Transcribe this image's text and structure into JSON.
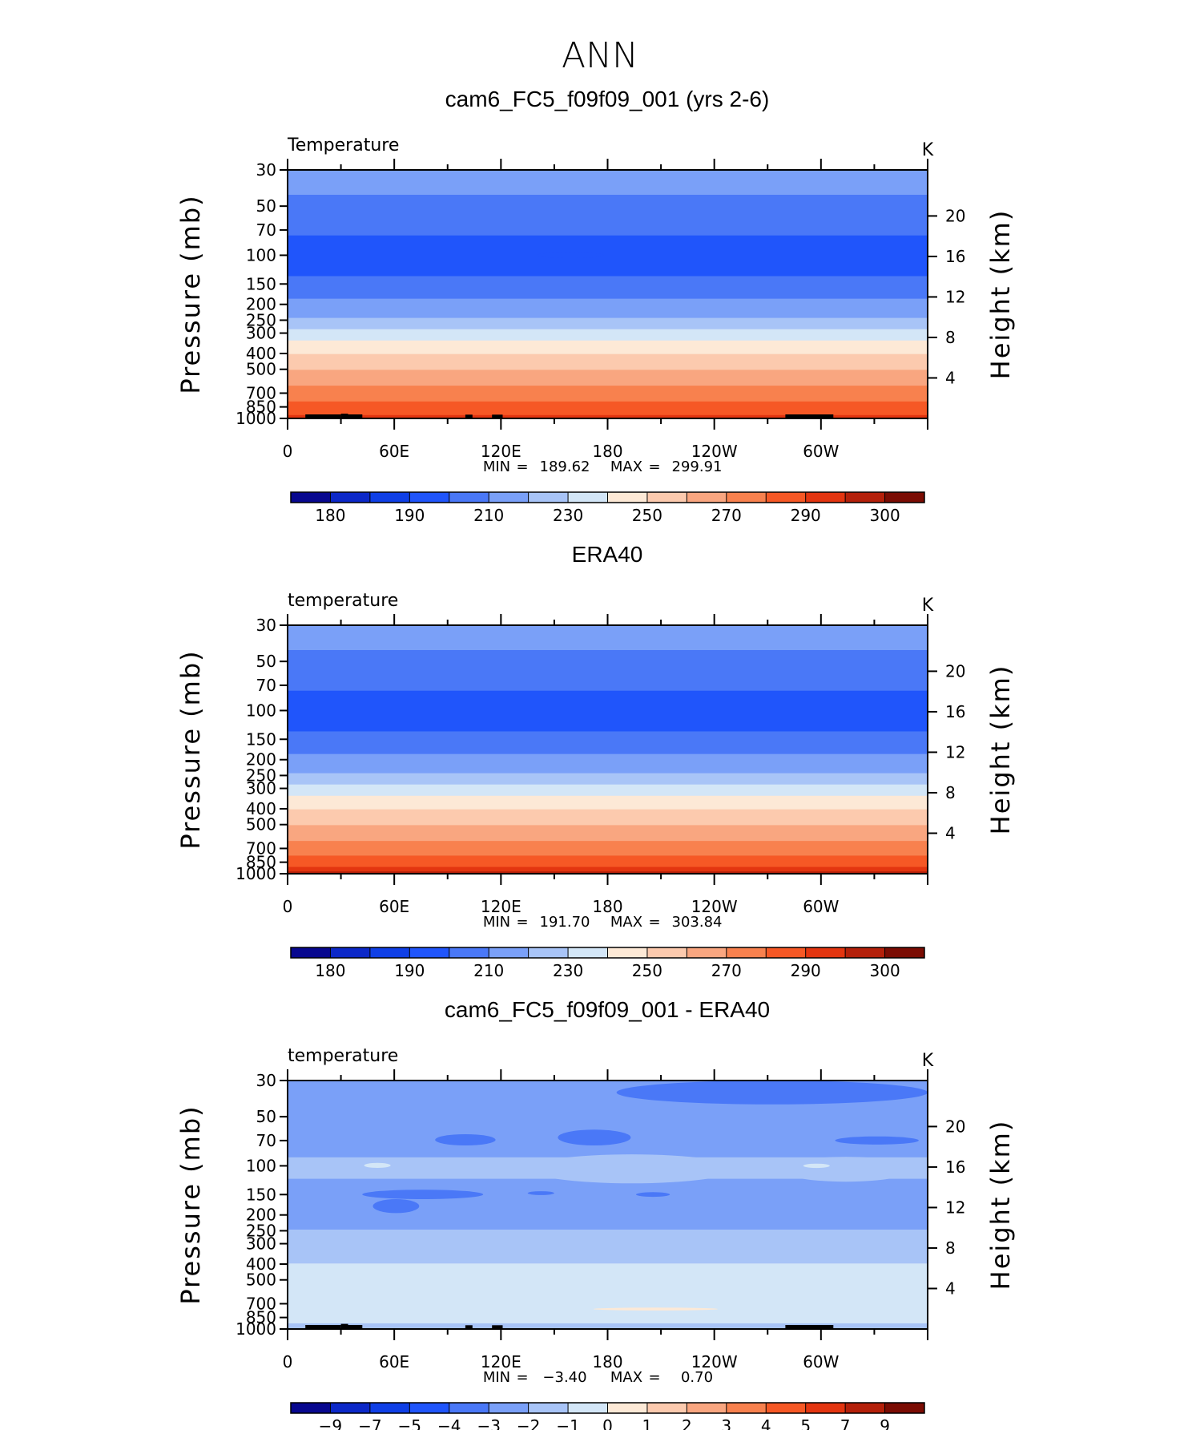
{
  "figure_title": "ANN",
  "chart_data": [
    {
      "type": "heatmap",
      "title": "cam6_FC5_f09f09_001 (yrs 2-6)",
      "var_label": "Temperature",
      "units": "K",
      "ylabel": "Pressure (mb)",
      "ylabel2": "Height (km)",
      "x_ticks": [
        "0",
        "60E",
        "120E",
        "180",
        "120W",
        "60W"
      ],
      "y_ticks": [
        "30",
        "50",
        "70",
        "100",
        "150",
        "200",
        "250",
        "300",
        "400",
        "500",
        "700",
        "850",
        "1000"
      ],
      "y2_ticks": [
        "20",
        "16",
        "12",
        "8",
        "4"
      ],
      "stats": {
        "min_label": "MIN",
        "min": "189.62",
        "max_label": "MAX",
        "max": "299.91"
      },
      "colorbar_labels": [
        "180",
        "190",
        "210",
        "230",
        "250",
        "270",
        "290",
        "300"
      ],
      "profile": [
        {
          "p": 30,
          "v": 213
        },
        {
          "p": 40,
          "v": 211
        },
        {
          "p": 52,
          "v": 207
        },
        {
          "p": 72,
          "v": 201
        },
        {
          "p": 90,
          "v": 197
        },
        {
          "p": 100,
          "v": 196
        },
        {
          "p": 130,
          "v": 199
        },
        {
          "p": 160,
          "v": 205
        },
        {
          "p": 210,
          "v": 215
        },
        {
          "p": 250,
          "v": 221
        },
        {
          "p": 300,
          "v": 234
        },
        {
          "p": 350,
          "v": 243
        },
        {
          "p": 420,
          "v": 252
        },
        {
          "p": 500,
          "v": 260
        },
        {
          "p": 600,
          "v": 268
        },
        {
          "p": 720,
          "v": 276
        },
        {
          "p": 850,
          "v": 283
        },
        {
          "p": 950,
          "v": 290
        },
        {
          "p": 1000,
          "v": 292
        }
      ],
      "topography": [
        [
          10,
          30,
          945
        ],
        [
          30,
          34,
          935
        ],
        [
          34,
          42,
          945
        ],
        [
          100,
          104,
          948
        ],
        [
          115,
          121,
          948
        ],
        [
          280,
          307,
          945
        ]
      ],
      "features": [
        {
          "x": [
            140,
            178
          ],
          "p": [
            96,
            104
          ],
          "v": 190
        }
      ]
    },
    {
      "type": "heatmap",
      "title": "ERA40",
      "var_label": "temperature",
      "units": "K",
      "ylabel": "Pressure (mb)",
      "ylabel2": "Height (km)",
      "x_ticks": [
        "0",
        "60E",
        "120E",
        "180",
        "120W",
        "60W"
      ],
      "y_ticks": [
        "30",
        "50",
        "70",
        "100",
        "150",
        "200",
        "250",
        "300",
        "400",
        "500",
        "700",
        "850",
        "1000"
      ],
      "y2_ticks": [
        "20",
        "16",
        "12",
        "8",
        "4"
      ],
      "stats": {
        "min_label": "MIN",
        "min": "191.70",
        "max_label": "MAX",
        "max": "303.84"
      },
      "colorbar_labels": [
        "180",
        "190",
        "210",
        "230",
        "250",
        "270",
        "290",
        "300"
      ],
      "profile": [
        {
          "p": 30,
          "v": 213
        },
        {
          "p": 40,
          "v": 211
        },
        {
          "p": 52,
          "v": 207
        },
        {
          "p": 72,
          "v": 201
        },
        {
          "p": 90,
          "v": 197
        },
        {
          "p": 100,
          "v": 196
        },
        {
          "p": 130,
          "v": 199
        },
        {
          "p": 160,
          "v": 205
        },
        {
          "p": 210,
          "v": 215
        },
        {
          "p": 250,
          "v": 221
        },
        {
          "p": 300,
          "v": 234
        },
        {
          "p": 350,
          "v": 243
        },
        {
          "p": 420,
          "v": 252
        },
        {
          "p": 500,
          "v": 260
        },
        {
          "p": 600,
          "v": 268
        },
        {
          "p": 720,
          "v": 276
        },
        {
          "p": 850,
          "v": 285
        },
        {
          "p": 950,
          "v": 293
        },
        {
          "p": 1000,
          "v": 297
        }
      ],
      "topography": [],
      "features": []
    },
    {
      "type": "heatmap",
      "title": "cam6_FC5_f09f09_001 - ERA40",
      "var_label": "temperature",
      "units": "K",
      "ylabel": "Pressure (mb)",
      "ylabel2": "Height (km)",
      "x_ticks": [
        "0",
        "60E",
        "120E",
        "180",
        "120W",
        "60W"
      ],
      "y_ticks": [
        "30",
        "50",
        "70",
        "100",
        "150",
        "200",
        "250",
        "300",
        "400",
        "500",
        "700",
        "850",
        "1000"
      ],
      "y2_ticks": [
        "20",
        "16",
        "12",
        "8",
        "4"
      ],
      "stats": {
        "min_label": "MIN",
        "min": "−3.40",
        "max_label": "MAX",
        "max": "0.70"
      },
      "colorbar_labels": [
        "−9",
        "−7",
        "−5",
        "−4",
        "−3",
        "−2",
        "−1",
        "0",
        "1",
        "2",
        "3",
        "4",
        "5",
        "7",
        "9"
      ],
      "profile": [
        {
          "p": 30,
          "v": -2.5
        },
        {
          "p": 85,
          "v": -2.5
        },
        {
          "p": 92,
          "v": -1.5
        },
        {
          "p": 115,
          "v": -1.5
        },
        {
          "p": 125,
          "v": -2.5
        },
        {
          "p": 230,
          "v": -2.5
        },
        {
          "p": 260,
          "v": -1.5
        },
        {
          "p": 380,
          "v": -1.5
        },
        {
          "p": 420,
          "v": -0.5
        },
        {
          "p": 900,
          "v": -0.5
        },
        {
          "p": 940,
          "v": -1.5
        },
        {
          "p": 1000,
          "v": -1.5
        }
      ],
      "topography": [
        [
          10,
          30,
          945
        ],
        [
          30,
          34,
          930
        ],
        [
          34,
          42,
          945
        ],
        [
          100,
          104,
          948
        ],
        [
          115,
          121,
          948
        ],
        [
          280,
          307,
          945
        ]
      ],
      "features": [
        {
          "x": [
            185,
            360
          ],
          "p": [
            30,
            42
          ],
          "v": -3.5
        },
        {
          "x": [
            83,
            117
          ],
          "p": [
            64,
            75
          ],
          "v": -3.5
        },
        {
          "x": [
            152,
            193
          ],
          "p": [
            60,
            75
          ],
          "v": -3.5
        },
        {
          "x": [
            308,
            355
          ],
          "p": [
            66,
            74
          ],
          "v": -3.5
        },
        {
          "x": [
            42,
            110
          ],
          "p": [
            140,
            160
          ],
          "v": -3.5
        },
        {
          "x": [
            48,
            74
          ],
          "p": [
            160,
            195
          ],
          "v": -3.5
        },
        {
          "x": [
            135,
            150
          ],
          "p": [
            143,
            151
          ],
          "v": -3.5
        },
        {
          "x": [
            196,
            215
          ],
          "p": [
            145,
            155
          ],
          "v": -3.5
        },
        {
          "x": [
            26,
            57
          ],
          "p": [
            92,
            107
          ],
          "v": -1.5
        },
        {
          "x": [
            135,
            252
          ],
          "p": [
            85,
            128
          ],
          "v": -1.5
        },
        {
          "x": [
            276,
            352
          ],
          "p": [
            88,
            125
          ],
          "v": -1.5
        },
        {
          "x": [
            43,
            58
          ],
          "p": [
            96,
            103
          ],
          "v": -0.5
        },
        {
          "x": [
            290,
            305
          ],
          "p": [
            97,
            103
          ],
          "v": -0.5
        },
        {
          "x": [
            172,
            242
          ],
          "p": [
            740,
            770
          ],
          "v": 0.5
        },
        {
          "x": [
            331,
            352
          ],
          "p": [
            830,
            870
          ],
          "v": -0.5
        }
      ]
    }
  ],
  "colormap": [
    "#08088f",
    "#0c28c8",
    "#0f3fe6",
    "#2055fb",
    "#4a78f7",
    "#7aa0f8",
    "#a8c4f7",
    "#d3e6f7",
    "#fde9d6",
    "#fccaae",
    "#f9a680",
    "#f8814e",
    "#f65825",
    "#e33510",
    "#b4200a",
    "#7b0c03"
  ],
  "temperature_levels": [
    180,
    185,
    190,
    200,
    210,
    220,
    230,
    240,
    250,
    260,
    270,
    280,
    290,
    295,
    300
  ],
  "difference_levels": [
    -9,
    -7,
    -5,
    -4,
    -3,
    -2,
    -1,
    0,
    1,
    2,
    3,
    4,
    5,
    7,
    9
  ]
}
